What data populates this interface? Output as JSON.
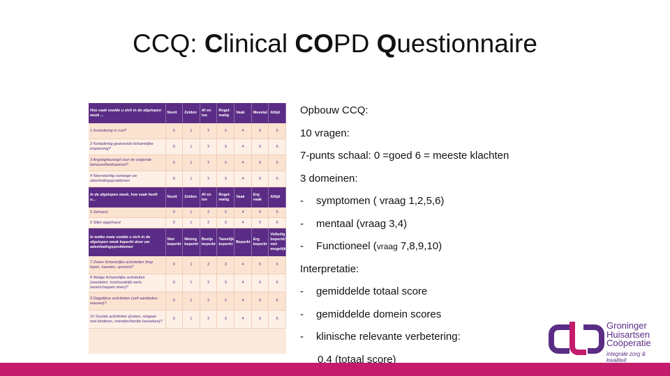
{
  "slide": {
    "title_parts": [
      "CCQ: ",
      "C",
      "linical ",
      "CO",
      "PD ",
      "Q",
      "uestionnaire"
    ]
  },
  "questionnaire": {
    "sections": [
      {
        "header": {
          "question": "Hoe vaak voelde u zich in de afgelopen week ...",
          "options": [
            "Nooit",
            "Zelden",
            "Af en toe",
            "Regel-matig",
            "Vaak",
            "Meestal",
            "Altijd"
          ]
        },
        "rows": [
          {
            "q": "1 Kortademig in rust?",
            "v": [
              "0",
              "1",
              "2",
              "3",
              "4",
              "5",
              "6"
            ]
          },
          {
            "q": "2 Kortademig gedurende lichamelijke inspanning?",
            "v": [
              "0",
              "1",
              "2",
              "3",
              "4",
              "5",
              "6"
            ]
          },
          {
            "q": "3 Angstig/bezorgd voor de volgende benauwdheidsaanval?",
            "v": [
              "0",
              "1",
              "2",
              "3",
              "4",
              "5",
              "6"
            ]
          },
          {
            "q": "4 Neerslachtig vanwege uw ademhalingsproblemen",
            "v": [
              "0",
              "1",
              "2",
              "3",
              "4",
              "5",
              "6"
            ]
          }
        ]
      },
      {
        "header": {
          "question": "In de afgelopen week, hoe vaak heeft u...",
          "options": [
            "Nooit",
            "Zelden",
            "Af en toe",
            "Regel-matig",
            "Vaak",
            "Erg vaak",
            "Altijd"
          ]
        },
        "rows": [
          {
            "q": "5 Gehoest",
            "v": [
              "0",
              "1",
              "2",
              "3",
              "4",
              "5",
              "6"
            ]
          },
          {
            "q": "6 Slijm opgehoest",
            "v": [
              "0",
              "1",
              "2",
              "3",
              "4",
              "5",
              "6"
            ]
          }
        ]
      },
      {
        "header": {
          "question": "In welke mate voelde u zich in de afgelopen week beperkt door uw ademhalingsproblemen",
          "options": [
            "Niet beperkt",
            "Weinig beperkt",
            "Beetje beperkt",
            "Tamelijk beperkt",
            "Beperkt",
            "Erg beperkt",
            "Volledig beperkt/ niet mogelijk"
          ]
        },
        "rows": [
          {
            "q": "7 Zware lichamelijke activiteiten (trap lopen, haasten, sporten)?",
            "v": [
              "0",
              "1",
              "2",
              "3",
              "4",
              "5",
              "6"
            ]
          },
          {
            "q": "8 Matige lichamelijke activiteiten (wandelen, huishoudelijk werk, boodschappen doen)?",
            "v": [
              "0",
              "1",
              "2",
              "3",
              "4",
              "5",
              "6"
            ]
          },
          {
            "q": "9 Dagelijkse activiteiten (zelf aankleden, wassen)?",
            "v": [
              "0",
              "1",
              "2",
              "3",
              "4",
              "5",
              "6"
            ]
          },
          {
            "q": "10 Sociale activiteiten (praten, omgaan met kinderen, vrienden/familie bezoeken)?",
            "v": [
              "0",
              "1",
              "2",
              "3",
              "4",
              "5",
              "6"
            ]
          }
        ]
      }
    ]
  },
  "info": {
    "heading": "Opbouw CCQ:",
    "questions": "10 vragen:",
    "scale": "7-punts schaal: 0 =goed  6 = meeste klachten",
    "domains": "3 domeinen:",
    "dash": "-",
    "domain_items": [
      {
        "text": "symptomen ( vraag 1,2,5,6)",
        "small": ""
      },
      {
        "text": "mentaal (vraag 3,4)",
        "small": ""
      },
      {
        "text": "Functioneel (",
        "small": "vraag",
        "rest": " 7,8,9,10)"
      }
    ],
    "interpretation": "Interpretatie:",
    "interp_items": [
      "gemiddelde totaal score",
      "gemiddelde domein scores",
      "klinische relevante verbetering:"
    ],
    "interp_cont": "0,4 (totaal score)"
  },
  "logo": {
    "words": [
      "Groninger",
      "Huisartsen",
      "Coöperatie"
    ],
    "tagline": "integrale zorg & kwaliteit",
    "color": "#5b2c85"
  },
  "colors": {
    "accent_bar": "#c41c6a",
    "table_header": "#5b2c85",
    "table_row": "#fbe3d1"
  }
}
